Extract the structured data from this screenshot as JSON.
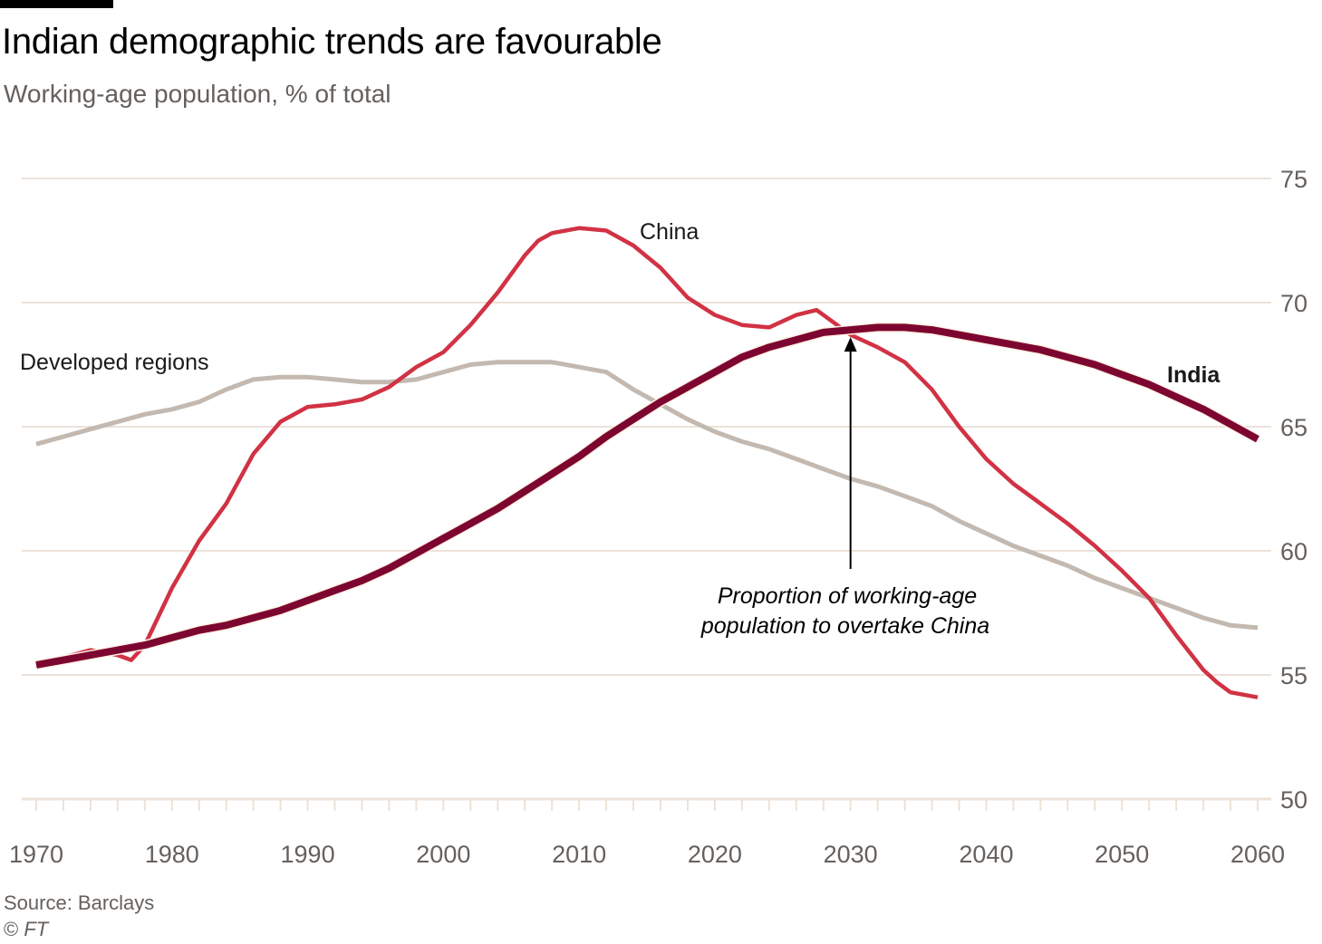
{
  "header": {
    "title": "Indian demographic trends are favourable",
    "subtitle": "Working-age population, % of total"
  },
  "footer": {
    "source": "Source: Barclays",
    "copyright_symbol": "©",
    "copyright_owner": "FT"
  },
  "colors": {
    "china": "#d13244",
    "india": "#7d0630",
    "developed": "#c3b9b0",
    "grid": "#ece2d8",
    "axis_text": "#66605c"
  },
  "chart_data": {
    "type": "line",
    "title": "Indian demographic trends are favourable",
    "subtitle": "Working-age population, % of total",
    "xlabel": "",
    "ylabel": "",
    "xlim": [
      1970,
      2060
    ],
    "ylim": [
      50,
      75
    ],
    "grid": true,
    "y_axis_side": "right",
    "x_ticks": [
      1970,
      1980,
      1990,
      2000,
      2010,
      2020,
      2030,
      2040,
      2050,
      2060
    ],
    "x_tick_labels": [
      "1970",
      "1980",
      "1990",
      "2000",
      "2010",
      "2020",
      "2030",
      "2040",
      "2050",
      "2060"
    ],
    "x_minor_tick_step": 2,
    "y_ticks": [
      50,
      55,
      60,
      65,
      70,
      75
    ],
    "y_tick_labels": [
      "50",
      "55",
      "60",
      "65",
      "70",
      "75"
    ],
    "series": [
      {
        "name": "Developed regions",
        "label": "Developed regions",
        "color_key": "developed",
        "x": [
          1970,
          1972,
          1974,
          1976,
          1978,
          1980,
          1982,
          1984,
          1986,
          1988,
          1990,
          1992,
          1994,
          1996,
          1998,
          2000,
          2002,
          2004,
          2006,
          2008,
          2010,
          2012,
          2014,
          2016,
          2018,
          2020,
          2022,
          2024,
          2026,
          2028,
          2030,
          2032,
          2034,
          2036,
          2038,
          2040,
          2042,
          2044,
          2046,
          2048,
          2050,
          2052,
          2054,
          2056,
          2058,
          2060
        ],
        "values": [
          64.3,
          64.6,
          64.9,
          65.2,
          65.5,
          65.7,
          66.0,
          66.5,
          66.9,
          67.0,
          67.0,
          66.9,
          66.8,
          66.8,
          66.9,
          67.2,
          67.5,
          67.6,
          67.6,
          67.6,
          67.4,
          67.2,
          66.5,
          65.9,
          65.3,
          64.8,
          64.4,
          64.1,
          63.7,
          63.3,
          62.9,
          62.6,
          62.2,
          61.8,
          61.2,
          60.7,
          60.2,
          59.8,
          59.4,
          58.9,
          58.5,
          58.1,
          57.7,
          57.3,
          57.0,
          56.9
        ]
      },
      {
        "name": "China",
        "label": "China",
        "color_key": "china",
        "x": [
          1970,
          1972,
          1974,
          1976,
          1977,
          1978,
          1980,
          1982,
          1984,
          1986,
          1988,
          1990,
          1992,
          1994,
          1996,
          1998,
          2000,
          2002,
          2004,
          2006,
          2007,
          2008,
          2010,
          2012,
          2014,
          2016,
          2018,
          2020,
          2022,
          2024,
          2026,
          2027.5,
          2030,
          2032,
          2034,
          2036,
          2038,
          2040,
          2042,
          2044,
          2046,
          2048,
          2050,
          2052,
          2054,
          2056,
          2057,
          2058,
          2060
        ],
        "values": [
          55.4,
          55.7,
          56.0,
          55.8,
          55.6,
          56.2,
          58.5,
          60.4,
          61.9,
          63.9,
          65.2,
          65.8,
          65.9,
          66.1,
          66.6,
          67.4,
          68.0,
          69.1,
          70.4,
          71.9,
          72.5,
          72.8,
          73.0,
          72.9,
          72.3,
          71.4,
          70.2,
          69.5,
          69.1,
          69.0,
          69.5,
          69.7,
          68.7,
          68.2,
          67.6,
          66.5,
          65.0,
          63.7,
          62.7,
          61.9,
          61.1,
          60.2,
          59.2,
          58.1,
          56.6,
          55.2,
          54.7,
          54.3,
          54.1
        ]
      },
      {
        "name": "India",
        "label": "India",
        "color_key": "india",
        "x": [
          1970,
          1972,
          1974,
          1976,
          1978,
          1980,
          1982,
          1984,
          1986,
          1988,
          1990,
          1992,
          1994,
          1996,
          1998,
          2000,
          2002,
          2004,
          2006,
          2008,
          2010,
          2012,
          2014,
          2016,
          2018,
          2020,
          2022,
          2024,
          2026,
          2028,
          2030,
          2032,
          2034,
          2036,
          2038,
          2040,
          2042,
          2044,
          2046,
          2048,
          2050,
          2052,
          2054,
          2056,
          2058,
          2060
        ],
        "values": [
          55.4,
          55.6,
          55.8,
          56.0,
          56.2,
          56.5,
          56.8,
          57.0,
          57.3,
          57.6,
          58.0,
          58.4,
          58.8,
          59.3,
          59.9,
          60.5,
          61.1,
          61.7,
          62.4,
          63.1,
          63.8,
          64.6,
          65.3,
          66.0,
          66.6,
          67.2,
          67.8,
          68.2,
          68.5,
          68.8,
          68.9,
          69.0,
          69.0,
          68.9,
          68.7,
          68.5,
          68.3,
          68.1,
          67.8,
          67.5,
          67.1,
          66.7,
          66.2,
          65.7,
          65.1,
          64.5
        ]
      }
    ],
    "annotations": [
      {
        "text_lines": [
          "Proportion of working-age",
          "population to overtake China"
        ],
        "arrow_to_year": 2030,
        "arrow_to_value": 68.9
      }
    ]
  }
}
